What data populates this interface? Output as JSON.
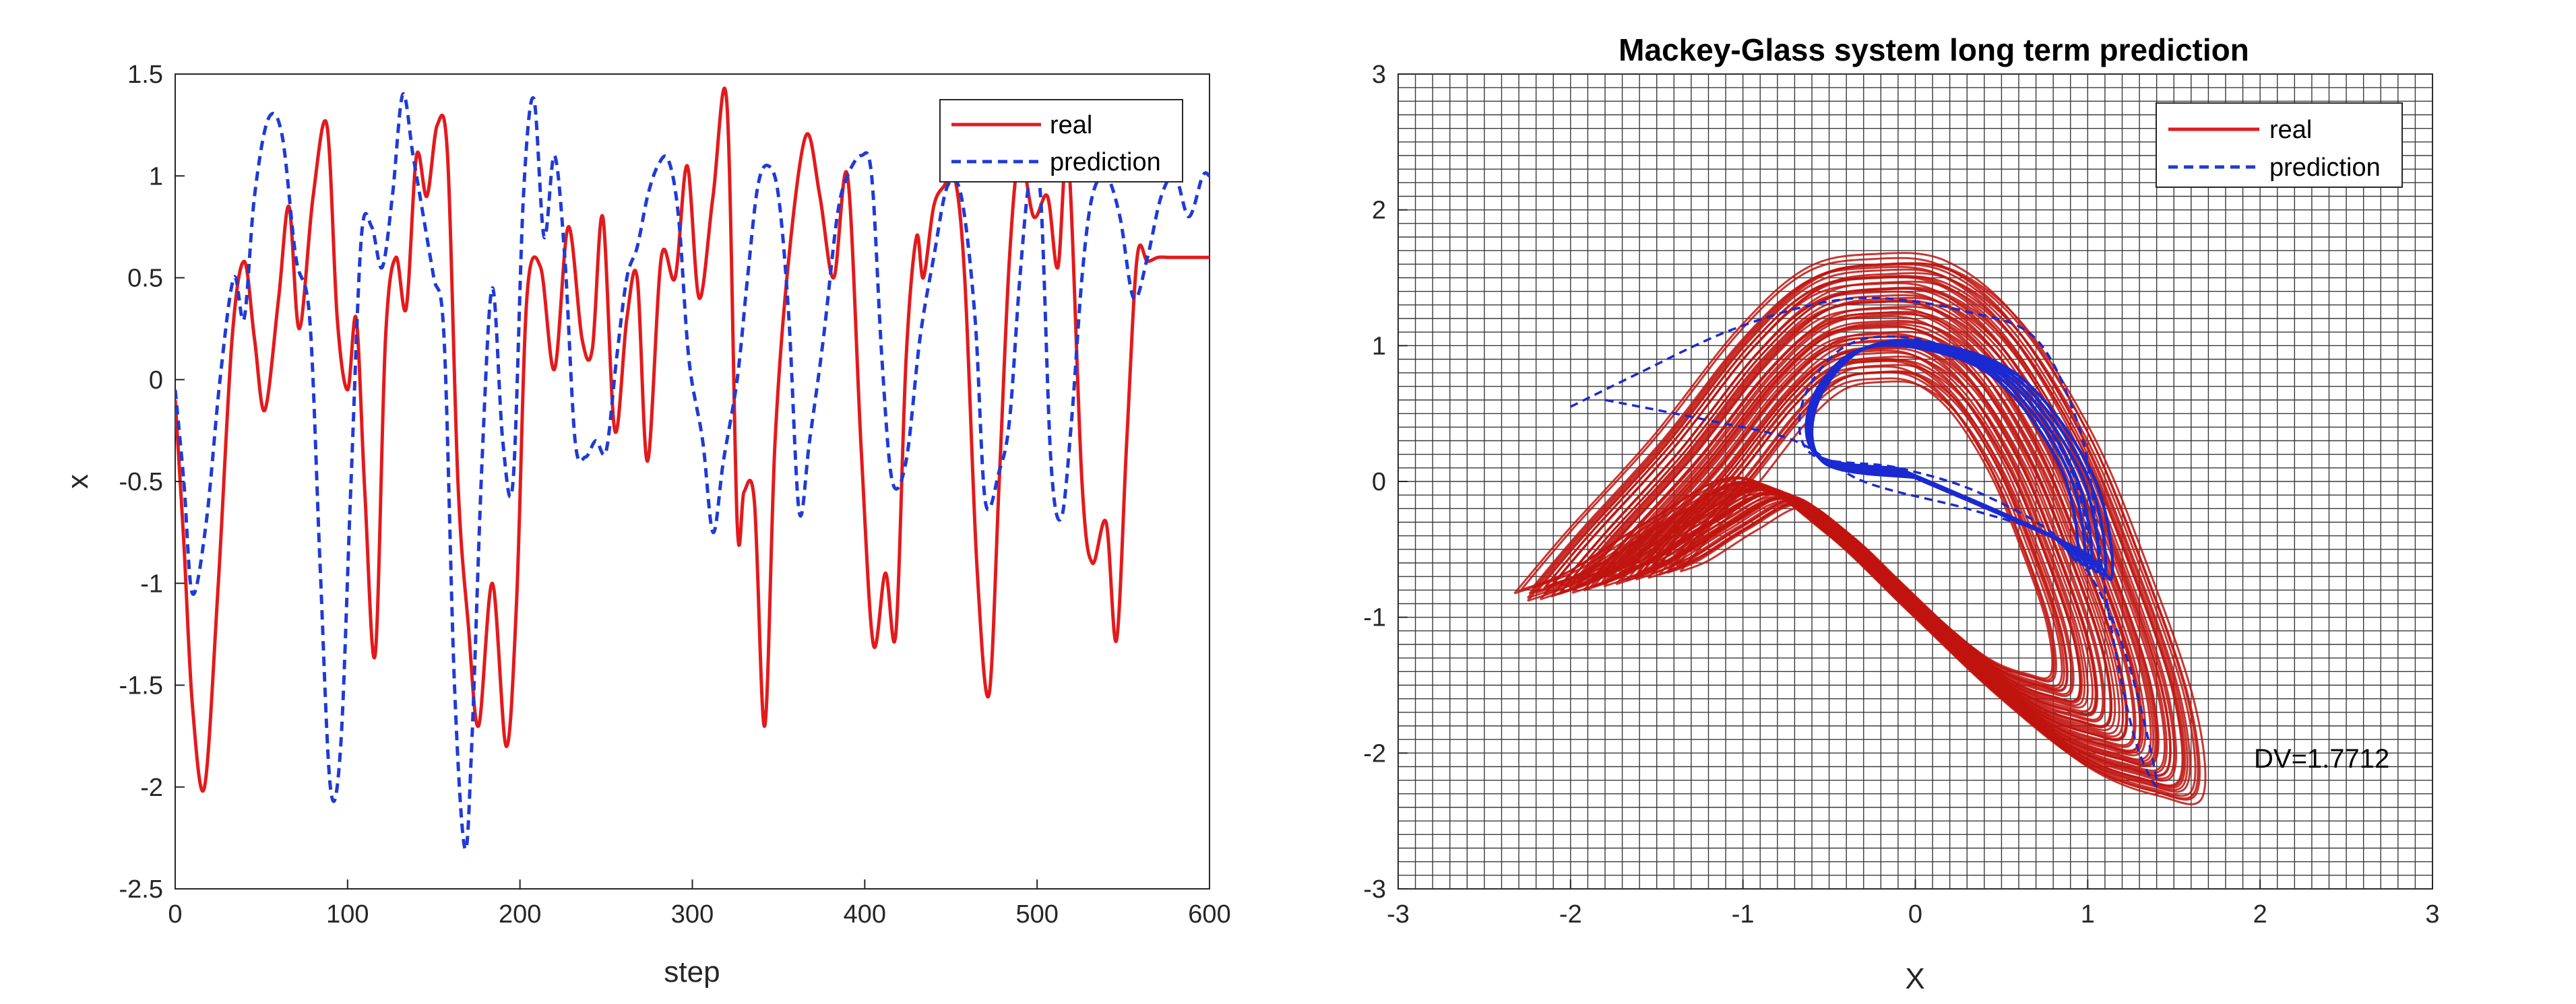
{
  "colors": {
    "real": "#e31a1c",
    "prediction": "#1f3bd6",
    "phase_real": "#c0140f",
    "phase_prediction": "#1a2ad0",
    "grid": "#3a3a3a",
    "axis": "#262626"
  },
  "chart_data": [
    {
      "type": "line",
      "title": "",
      "xlabel": "step",
      "ylabel": "x",
      "xlim": [
        0,
        600
      ],
      "ylim": [
        -2.5,
        1.5
      ],
      "xticks": [
        0,
        100,
        200,
        300,
        400,
        500,
        600
      ],
      "xtick_labels": [
        "0",
        "100",
        "200",
        "300",
        "400",
        "500",
        "600"
      ],
      "yticks": [
        1.5,
        1,
        0.5,
        0,
        -0.5,
        -1,
        -1.5,
        -2,
        -2.5
      ],
      "ytick_labels": [
        "1.5",
        "1",
        "0.5",
        "0",
        "-0.5",
        "-1",
        "-1.5",
        "-2",
        "-2.5"
      ],
      "grid": false,
      "legend_position": "top-right",
      "series": [
        {
          "name": "real",
          "style": "solid",
          "x": [
            0,
            5,
            10,
            17,
            25,
            33,
            40,
            46,
            52,
            60,
            66,
            72,
            80,
            88,
            94,
            100,
            105,
            110,
            116,
            122,
            128,
            134,
            140,
            146,
            152,
            158,
            164,
            170,
            176,
            184,
            192,
            198,
            204,
            212,
            220,
            228,
            236,
            242,
            248,
            255,
            262,
            268,
            274,
            282,
            290,
            297,
            304,
            312,
            320,
            326,
            330,
            336,
            342,
            348,
            356,
            366,
            374,
            382,
            390,
            398,
            405,
            412,
            418,
            424,
            430,
            434,
            440,
            446,
            452,
            458,
            465,
            472,
            478,
            484,
            490,
            498,
            506,
            512,
            518,
            526,
            532,
            540,
            546,
            552,
            558,
            564,
            570,
            576,
            582,
            588,
            594,
            600
          ],
          "y": [
            -0.1,
            -0.8,
            -1.6,
            -2.0,
            -1.0,
            0.2,
            0.58,
            0.2,
            -0.15,
            0.4,
            0.85,
            0.25,
            0.9,
            1.25,
            0.3,
            -0.05,
            0.3,
            -0.55,
            -1.35,
            0.2,
            0.6,
            0.35,
            1.1,
            0.9,
            1.25,
            1.1,
            -0.5,
            -1.2,
            -1.7,
            -1.0,
            -1.8,
            -1.1,
            0.4,
            0.55,
            0.05,
            0.75,
            0.2,
            0.15,
            0.8,
            -0.25,
            0.3,
            0.5,
            -0.4,
            0.6,
            0.5,
            1.05,
            0.4,
            0.9,
            1.36,
            -0.7,
            -0.55,
            -0.6,
            -1.7,
            -0.3,
            0.6,
            1.2,
            0.9,
            0.5,
            1.0,
            -0.35,
            -1.3,
            -0.95,
            -1.25,
            0.1,
            0.7,
            0.5,
            0.85,
            0.95,
            1.0,
            0.5,
            -0.9,
            -1.55,
            -0.5,
            0.6,
            1.1,
            0.8,
            0.9,
            0.55,
            1.1,
            -0.5,
            -0.9,
            -0.7,
            -1.28,
            -0.3,
            0.6,
            0.58,
            0.6,
            0.6,
            0.6,
            0.6,
            0.6,
            0.6
          ]
        },
        {
          "name": "prediction",
          "style": "dashed",
          "x": [
            0,
            5,
            10,
            18,
            26,
            34,
            40,
            46,
            54,
            62,
            70,
            78,
            84,
            90,
            96,
            102,
            108,
            114,
            120,
            126,
            132,
            138,
            144,
            150,
            156,
            162,
            168,
            172,
            178,
            184,
            190,
            196,
            202,
            208,
            214,
            220,
            226,
            232,
            238,
            244,
            250,
            256,
            262,
            268,
            274,
            280,
            286,
            292,
            298,
            306,
            312,
            318,
            326,
            332,
            338,
            344,
            350,
            356,
            362,
            368,
            376,
            384,
            390,
            398,
            404,
            410,
            416,
            424,
            432,
            440,
            448,
            456,
            464,
            470,
            478,
            484,
            490,
            496,
            502,
            508,
            514,
            520,
            526,
            532,
            540,
            548,
            556,
            564,
            572,
            580,
            588,
            596,
            600
          ],
          "y": [
            -0.05,
            -0.5,
            -1.05,
            -0.7,
            0.0,
            0.5,
            0.3,
            0.9,
            1.28,
            1.2,
            0.6,
            0.3,
            -0.9,
            -2.0,
            -1.8,
            -0.5,
            0.7,
            0.75,
            0.55,
            0.9,
            1.4,
            1.1,
            0.8,
            0.5,
            0.2,
            -1.5,
            -2.3,
            -1.8,
            -0.4,
            0.45,
            -0.3,
            -0.5,
            0.9,
            1.38,
            0.7,
            1.1,
            0.6,
            -0.3,
            -0.38,
            -0.3,
            -0.35,
            0.1,
            0.5,
            0.65,
            0.9,
            1.05,
            1.08,
            0.8,
            0.1,
            -0.3,
            -0.75,
            -0.4,
            0.0,
            0.5,
            0.95,
            1.05,
            0.9,
            0.3,
            -0.65,
            -0.3,
            0.2,
            0.8,
            1.0,
            1.1,
            1.0,
            0.1,
            -0.5,
            -0.4,
            0.2,
            0.6,
            0.95,
            0.9,
            0.3,
            -0.6,
            -0.45,
            -0.2,
            0.5,
            1.0,
            0.9,
            -0.4,
            -0.68,
            -0.2,
            0.5,
            0.9,
            1.0,
            0.8,
            0.4,
            0.6,
            0.9,
            1.0,
            0.8,
            1.0,
            1.0
          ]
        }
      ]
    },
    {
      "type": "line",
      "title": "Mackey-Glass system long term prediction",
      "xlabel": "X",
      "ylabel": "",
      "xlim": [
        -3,
        3
      ],
      "ylim": [
        -3,
        3
      ],
      "xticks": [
        -3,
        -2,
        -1,
        0,
        1,
        2,
        3
      ],
      "xtick_labels": [
        "-3",
        "-2",
        "-1",
        "0",
        "1",
        "2",
        "3"
      ],
      "yticks": [
        3,
        2,
        1,
        0,
        -1,
        -2,
        -3
      ],
      "ytick_labels": [
        "3",
        "2",
        "1",
        "0",
        "-1",
        "-2",
        "-3"
      ],
      "grid": true,
      "grid_spacing": 0.1,
      "legend_position": "top-right",
      "annotation": "DV=1.7712",
      "series": [
        {
          "name": "real",
          "style": "solid",
          "x": [
            -2.3,
            -2.0,
            -1.5,
            -1.0,
            -0.6,
            -0.2,
            0.2,
            0.6,
            1.0,
            1.3,
            1.6,
            1.65,
            1.4,
            1.0,
            0.5,
            0.0,
            -0.5,
            -1.0,
            -1.5,
            -2.0,
            -2.3
          ],
          "y": [
            -0.85,
            -0.4,
            0.3,
            1.1,
            1.55,
            1.65,
            1.6,
            1.2,
            0.4,
            -0.5,
            -1.6,
            -2.3,
            -2.3,
            -2.1,
            -1.6,
            -1.0,
            -0.4,
            0.0,
            -0.3,
            -0.7,
            -0.85
          ]
        },
        {
          "name": "prediction",
          "style": "dashed",
          "x": [
            -2.0,
            -1.6,
            -1.1,
            -0.6,
            -0.2,
            0.3,
            0.7,
            0.95,
            1.05,
            1.1,
            1.2,
            1.3,
            1.4,
            1.2,
            0.9,
            0.4,
            -0.1,
            -0.6,
            -0.65,
            -0.4,
            0.0,
            0.5,
            0.9,
            1.0,
            0.8,
            0.3,
            -0.3,
            -0.7,
            -1.2,
            -1.8
          ],
          "y": [
            0.55,
            0.8,
            1.1,
            1.3,
            1.35,
            1.25,
            1.05,
            0.4,
            -0.3,
            -0.8,
            -1.5,
            -2.0,
            -2.2,
            -1.2,
            -0.5,
            -0.1,
            0.1,
            0.2,
            0.6,
            1.0,
            1.05,
            0.8,
            0.1,
            -0.6,
            -0.4,
            -0.2,
            0.0,
            0.3,
            0.45,
            0.6
          ]
        }
      ]
    }
  ]
}
